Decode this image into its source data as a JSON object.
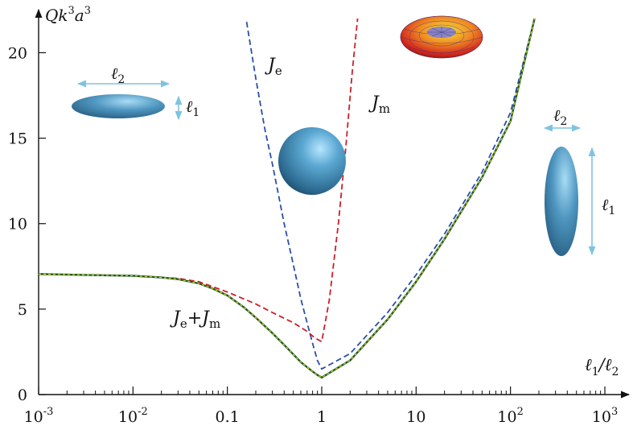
{
  "chart_data": {
    "type": "line",
    "title": "",
    "xlabel_main": "ℓ",
    "xlabel_sub1": "1",
    "xlabel_mid": "/ℓ",
    "xlabel_sub2": "2",
    "ylabel_main": "Qk",
    "ylabel_sup1": "3",
    "ylabel_mid": "a",
    "ylabel_sup2": "3",
    "xscale": "log",
    "xlim": [
      0.001,
      1000
    ],
    "ylim": [
      0,
      22
    ],
    "grid": false,
    "x_ticks": [
      {
        "base": "10",
        "exp": "-3",
        "value": 0.001
      },
      {
        "base": "10",
        "exp": "-2",
        "value": 0.01
      },
      {
        "base": "0.1",
        "exp": "",
        "value": 0.1
      },
      {
        "base": "1",
        "exp": "",
        "value": 1
      },
      {
        "base": "10",
        "exp": "",
        "value": 10
      },
      {
        "base": "10",
        "exp": "2",
        "value": 100
      },
      {
        "base": "10",
        "exp": "3",
        "value": 1000
      }
    ],
    "y_ticks": [
      {
        "label": "0",
        "value": 0
      },
      {
        "label": "5",
        "value": 5
      },
      {
        "label": "10",
        "value": 10
      },
      {
        "label": "15",
        "value": 15
      },
      {
        "label": "20",
        "value": 20
      }
    ],
    "series": [
      {
        "label_main": "J",
        "label_sub": "e",
        "color": "#2a4fa8",
        "style": "dashed",
        "x": [
          0.16,
          0.2,
          0.25,
          0.3,
          0.4,
          0.5,
          0.6,
          0.7,
          0.8,
          0.9,
          1.0,
          2,
          5,
          10,
          20,
          50,
          100,
          180
        ],
        "y": [
          21.8,
          18.5,
          15.5,
          13.5,
          10.0,
          7.6,
          5.6,
          4.2,
          3.0,
          2.0,
          1.5,
          2.4,
          4.8,
          7.0,
          9.4,
          13.0,
          16.5,
          22.0
        ]
      },
      {
        "label_main": "J",
        "label_sub": "m",
        "color": "#cc1f2a",
        "style": "dashed",
        "x": [
          0.001,
          0.003,
          0.01,
          0.03,
          0.05,
          0.1,
          0.2,
          0.3,
          0.5,
          0.7,
          0.85,
          1.0,
          1.2,
          1.5,
          1.8,
          2.1,
          2.4
        ],
        "y": [
          7.05,
          7.0,
          6.95,
          6.8,
          6.6,
          6.0,
          5.3,
          4.8,
          4.2,
          3.7,
          3.3,
          3.1,
          5.5,
          10.0,
          14.5,
          18.8,
          22.0
        ]
      },
      {
        "label_main": "J",
        "label_sub": "e",
        "label_plus": "+",
        "label_main2": "J",
        "label_sub2": "m",
        "color": "#1f5a1f",
        "overlay_color": "#d6d23a",
        "style": "solid",
        "x": [
          0.001,
          0.003,
          0.01,
          0.02,
          0.03,
          0.05,
          0.07,
          0.1,
          0.15,
          0.2,
          0.3,
          0.4,
          0.5,
          0.6,
          0.7,
          0.8,
          0.9,
          1.0,
          2,
          5,
          10,
          20,
          50,
          100,
          180
        ],
        "y": [
          7.05,
          7.0,
          6.95,
          6.85,
          6.75,
          6.5,
          6.2,
          5.8,
          5.1,
          4.5,
          3.6,
          2.9,
          2.35,
          1.9,
          1.6,
          1.35,
          1.15,
          1.0,
          2.0,
          4.4,
          6.6,
          9.1,
          12.7,
          16.0,
          22.0
        ]
      }
    ],
    "insets": {
      "oblate_dim_major": "2",
      "oblate_dim_minor": "1",
      "prolate_dim_width": "2",
      "prolate_dim_height": "1"
    }
  }
}
